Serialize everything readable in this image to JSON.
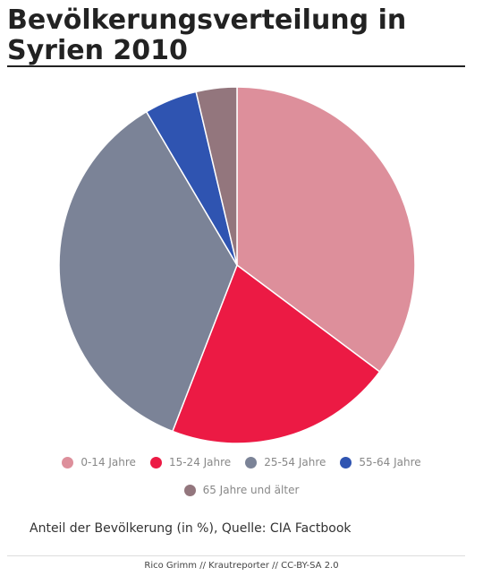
{
  "title": "Bevölkerungsverteilung in Syrien 2010",
  "caption": "Anteil der Bevölkerung (in %), Quelle: CIA Factbook",
  "credit": "Rico Grimm // Krautreporter // CC-BY-SA 2.0",
  "chart_data": {
    "type": "pie",
    "title": "Bevölkerungsverteilung in Syrien 2010",
    "categories": [
      "0-14 Jahre",
      "15-24 Jahre",
      "25-54 Jahre",
      "55-64 Jahre",
      "65 Jahre und älter"
    ],
    "values": [
      35.2,
      20.7,
      35.6,
      4.8,
      3.7
    ],
    "colors": [
      "#dd8f9b",
      "#ec1a44",
      "#7b8397",
      "#2f54b1",
      "#93767d"
    ],
    "legend_placement": "bottom"
  }
}
